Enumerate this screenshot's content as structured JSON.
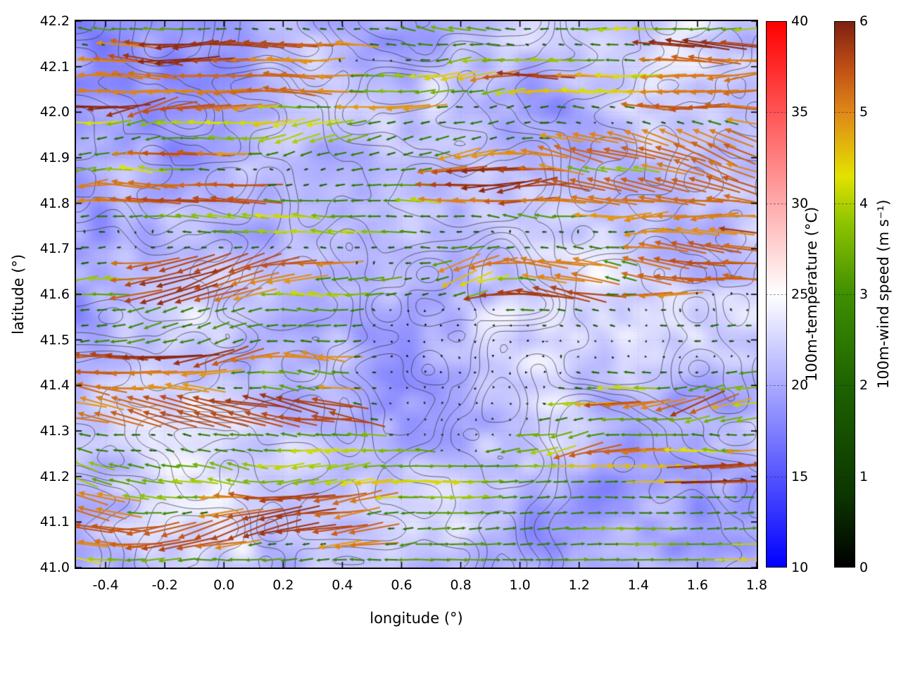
{
  "chart_data": {
    "type": "heatmap",
    "subtype": "filled temperature field with contour lines and wind-vector overlay",
    "title": "",
    "xlabel": "longitude (°)",
    "ylabel": "latitude (°)",
    "xlim": [
      -0.5,
      1.8
    ],
    "ylim": [
      41.0,
      42.2
    ],
    "xticks": [
      "-0.4",
      "-0.2",
      "0.0",
      "0.2",
      "0.4",
      "0.6",
      "0.8",
      "1.0",
      "1.2",
      "1.4",
      "1.6",
      "1.8"
    ],
    "xtick_values": [
      -0.4,
      -0.2,
      0.0,
      0.2,
      0.4,
      0.6,
      0.8,
      1.0,
      1.2,
      1.4,
      1.6,
      1.8
    ],
    "yticks": [
      "41.0",
      "41.1",
      "41.2",
      "41.3",
      "41.4",
      "41.5",
      "41.6",
      "41.7",
      "41.8",
      "41.9",
      "42.0",
      "42.1",
      "42.2"
    ],
    "ytick_values": [
      41.0,
      41.1,
      41.2,
      41.3,
      41.4,
      41.5,
      41.6,
      41.7,
      41.8,
      41.9,
      42.0,
      42.1,
      42.2
    ],
    "grid": "dotted",
    "background_field": {
      "name": "100m-temperature",
      "units": "°C",
      "range": [
        10,
        40
      ],
      "observed_values": "mostly 18-25 °C: pale blue-violet shading with white patches near 25 °C and rare faint pink spots above 25 °C",
      "colormap": [
        [
          10,
          "#0000ff"
        ],
        [
          15,
          "#5555ff"
        ],
        [
          20,
          "#aaaaff"
        ],
        [
          25,
          "#ffffff"
        ],
        [
          30,
          "#ffaaaa"
        ],
        [
          35,
          "#ff5555"
        ],
        [
          40,
          "#ff0000"
        ]
      ]
    },
    "contours": {
      "color": "#2d2d32",
      "description": "thin irregular nested contour lines covering the whole map"
    },
    "vector_field": {
      "name": "100m-wind",
      "units": "m s⁻¹",
      "speed_range": [
        0,
        6
      ],
      "dominant_direction": "westward (arrows point left); eastward flow in the south-east sector; near-calm dark speckles around lon 0.6-1.0, lat 41.3-41.6",
      "high_speed_streaks": "red/orange streaks near 5-6 m s⁻¹ in the north-west corner, along lat 41.65, lat 41.4 west, lat 41.1 south-west, and along the eastern edge lat 41.6-42.0",
      "colormap": [
        [
          0,
          "#000000"
        ],
        [
          0.8,
          "#0c3600"
        ],
        [
          2,
          "#1d6300"
        ],
        [
          3,
          "#3f8f00"
        ],
        [
          3.8,
          "#8fc400"
        ],
        [
          4.3,
          "#e2e200"
        ],
        [
          5,
          "#e08818"
        ],
        [
          5.5,
          "#bf4e14"
        ],
        [
          6,
          "#7e2012"
        ]
      ],
      "sample_vectors": [
        {
          "lon": -0.4,
          "lat": 42.15,
          "speed": 5.8,
          "dir": "W"
        },
        {
          "lon": 0.1,
          "lat": 42.1,
          "speed": 5.2,
          "dir": "W"
        },
        {
          "lon": 0.3,
          "lat": 41.9,
          "speed": 3.0,
          "dir": "W"
        },
        {
          "lon": -0.3,
          "lat": 41.65,
          "speed": 5.5,
          "dir": "W"
        },
        {
          "lon": 0.5,
          "lat": 41.65,
          "speed": 5.0,
          "dir": "W"
        },
        {
          "lon": -0.2,
          "lat": 41.4,
          "speed": 5.5,
          "dir": "W"
        },
        {
          "lon": 0.8,
          "lat": 41.45,
          "speed": 0.4,
          "dir": "variable"
        },
        {
          "lon": 1.3,
          "lat": 41.6,
          "speed": 2.5,
          "dir": "W"
        },
        {
          "lon": 1.7,
          "lat": 41.9,
          "speed": 5.8,
          "dir": "W"
        },
        {
          "lon": 1.0,
          "lat": 41.1,
          "speed": 3.6,
          "dir": "E"
        },
        {
          "lon": 1.6,
          "lat": 41.05,
          "speed": 4.0,
          "dir": "E"
        },
        {
          "lon": -0.3,
          "lat": 41.1,
          "speed": 5.4,
          "dir": "W"
        }
      ]
    },
    "colorbars": [
      {
        "label": "100m-temperature (°C)",
        "min": 10,
        "max": 40,
        "ticks": [
          "10",
          "15",
          "20",
          "25",
          "30",
          "35",
          "40"
        ],
        "tick_values": [
          10,
          15,
          20,
          25,
          30,
          35,
          40
        ]
      },
      {
        "label": "100m-wind speed (m s⁻¹)",
        "min": 0,
        "max": 6,
        "ticks": [
          "0",
          "1",
          "2",
          "3",
          "4",
          "5",
          "6"
        ],
        "tick_values": [
          0,
          1,
          2,
          3,
          4,
          5,
          6
        ]
      }
    ]
  }
}
